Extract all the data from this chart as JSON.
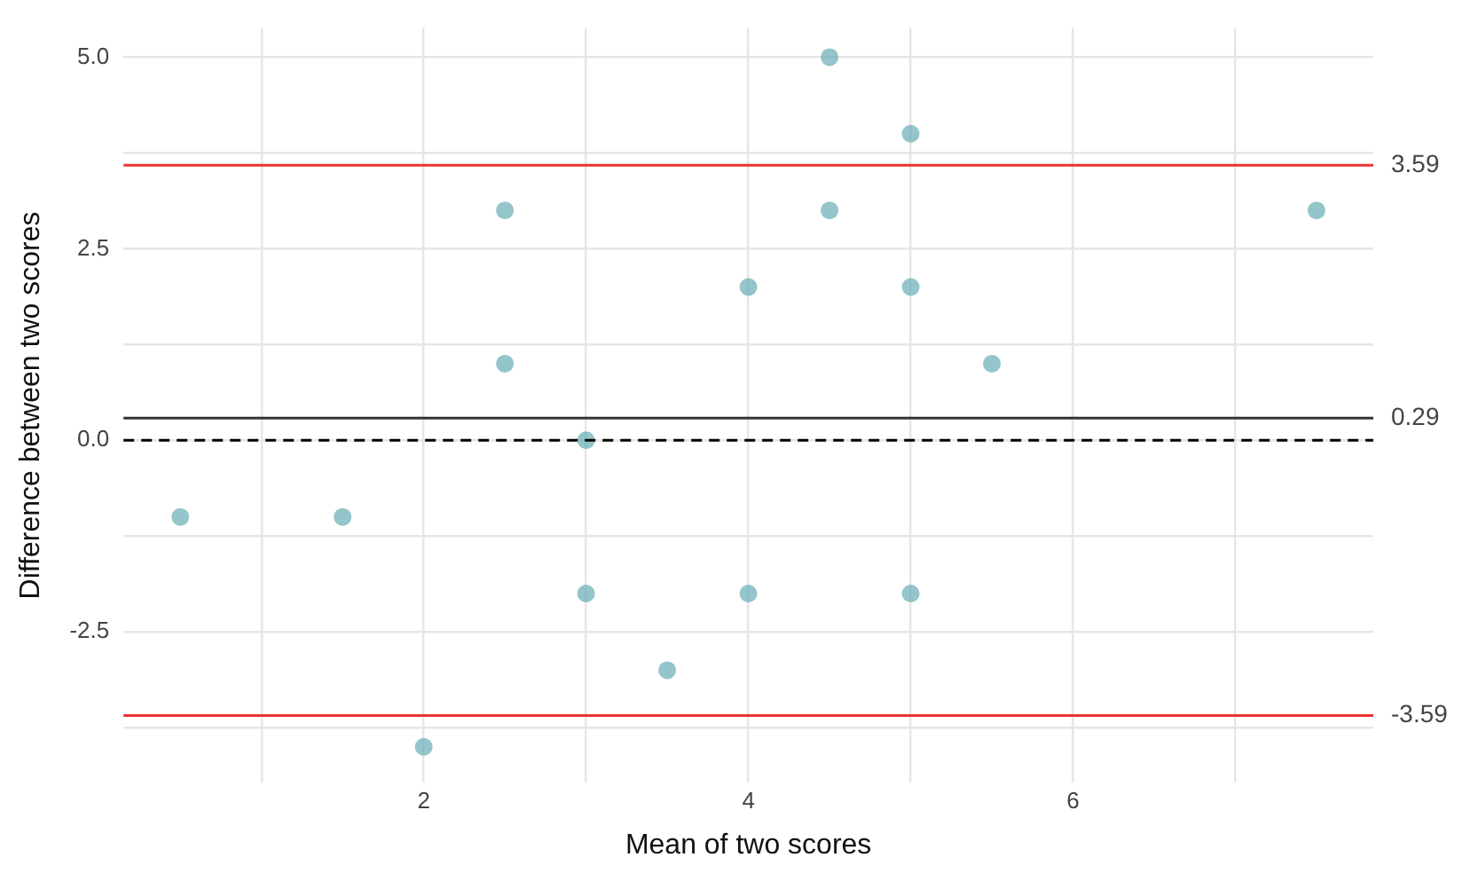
{
  "chart_data": {
    "type": "scatter",
    "xlabel": "Mean of two scores",
    "ylabel": "Difference between two scores",
    "x": [
      0.5,
      1.5,
      2,
      2.5,
      2.5,
      3,
      3,
      3.5,
      4,
      4,
      4.5,
      4.5,
      5,
      5,
      5,
      5.5,
      7.5
    ],
    "series": [
      {
        "color": "#5fa8b0",
        "values": [
          -1,
          -1,
          -4,
          3,
          1,
          0,
          -2,
          -3,
          2,
          -2,
          5,
          3,
          4,
          2,
          -2,
          1,
          3
        ]
      }
    ],
    "xlim": [
      0.15,
      7.85
    ],
    "xticks": [
      {
        "value": 1,
        "label": null
      },
      2,
      {
        "value": 3,
        "label": null
      },
      4,
      {
        "value": 5,
        "label": null
      },
      6,
      {
        "value": 7,
        "label": null
      }
    ],
    "ylim": [
      -4.47,
      5.38
    ],
    "yticks": [
      {
        "value": -3.75,
        "label": null
      },
      {
        "value": -2.5,
        "label": "-2.5"
      },
      {
        "value": -1.25,
        "label": null
      },
      {
        "value": 0,
        "label": "0.0"
      },
      {
        "value": 1.25,
        "label": null
      },
      {
        "value": 2.5,
        "label": "2.5"
      },
      {
        "value": 3.75,
        "label": null
      },
      {
        "value": 5,
        "label": "5.0"
      }
    ],
    "grid": true,
    "marker": "circle",
    "legend": false,
    "ref_lines": [
      {
        "axis": "y",
        "value": 3.59,
        "label": "3.59",
        "color": "#ee3333"
      },
      {
        "axis": "y",
        "value": 0.29,
        "label": "0.29",
        "color": "#333333"
      },
      {
        "axis": "y",
        "value": 0,
        "label": null,
        "color": "#000000",
        "line_style": "dashed"
      },
      {
        "axis": "y",
        "value": -3.59,
        "label": "-3.59",
        "color": "#ee3333"
      }
    ]
  }
}
